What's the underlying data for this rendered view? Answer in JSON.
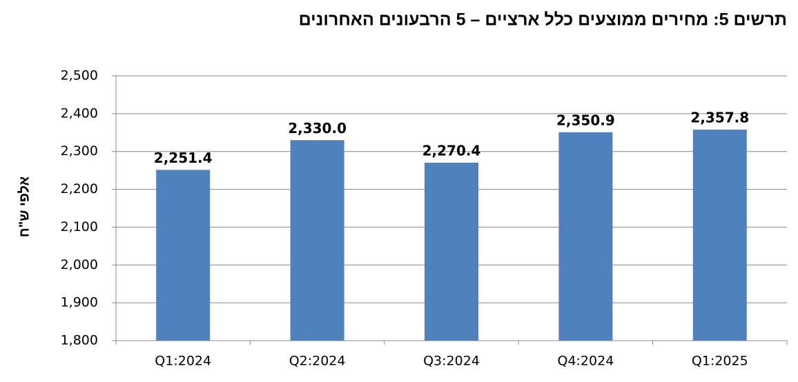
{
  "chart_data": {
    "type": "bar",
    "title": "תרשים 5: מחירים ממוצעים כלל ארציים – 5 הרבעונים האחרונים",
    "y_label": "אלפי ש\"ח",
    "categories": [
      "Q1:2024",
      "Q2:2024",
      "Q3:2024",
      "Q4:2024",
      "Q1:2025"
    ],
    "values": [
      2251.4,
      2330.0,
      2270.4,
      2350.9,
      2357.8
    ],
    "value_labels": [
      "2,251.4",
      "2,330.0",
      "2,270.4",
      "2,350.9",
      "2,357.8"
    ],
    "color": "#4f81bd",
    "ylim": [
      1800,
      2500
    ],
    "yticks": [
      {
        "value": 1800,
        "label": "1,800"
      },
      {
        "value": 1900,
        "label": "1,900"
      },
      {
        "value": 2000,
        "label": "2,000"
      },
      {
        "value": 2100,
        "label": "2,100"
      },
      {
        "value": 2200,
        "label": "2,200"
      },
      {
        "value": 2300,
        "label": "2,300"
      },
      {
        "value": 2400,
        "label": "2,400"
      },
      {
        "value": 2500,
        "label": "2,500"
      }
    ],
    "grid": true
  }
}
